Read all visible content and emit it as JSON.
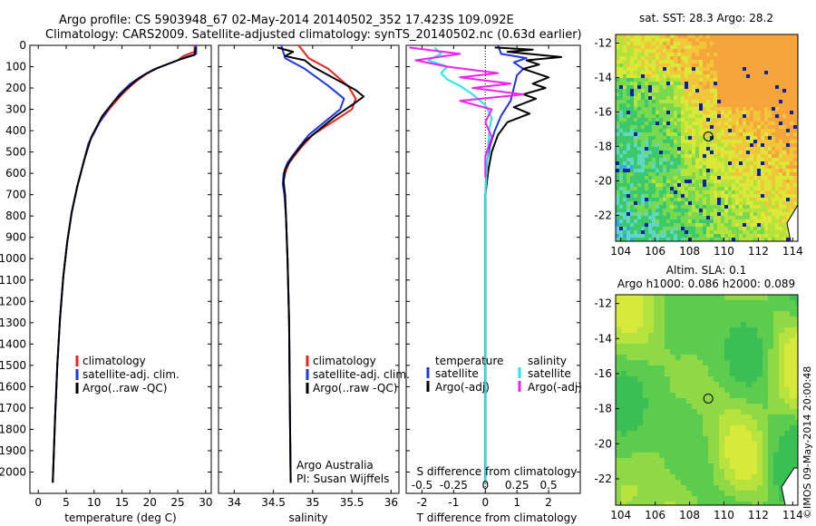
{
  "header": {
    "line1": "Argo profile: CS 5903948_67 02-May-2014 20140502_352 17.423S 109.092E",
    "line2": "Climatology: CARS2009. Satellite-adjusted climatology: synTS_20140502.nc (0.63d earlier)"
  },
  "colors": {
    "climatology": "#e8231e",
    "satellite": "#1f37e6",
    "argo": "#000000",
    "sat_salinity": "#27e6e6",
    "argo_salinity": "#ee22ee"
  },
  "chart_data": [
    {
      "type": "line",
      "id": "temperature",
      "xlabel": "temperature (deg C)",
      "ylabel": "",
      "xlim": [
        -1.5,
        31
      ],
      "ylim": [
        0,
        2100
      ],
      "xticks": [
        "0",
        "5",
        "10",
        "15",
        "20",
        "25",
        "30"
      ],
      "yticks": [
        "0",
        "100",
        "200",
        "300",
        "400",
        "500",
        "600",
        "700",
        "800",
        "900",
        "1000",
        "1100",
        "1200",
        "1300",
        "1400",
        "1500",
        "1600",
        "1700",
        "1800",
        "1900",
        "2000"
      ],
      "legend": [
        "climatology",
        "satellite-adj. clim.",
        "Argo(..raw -QC)"
      ],
      "series": [
        {
          "name": "climatology",
          "color": "#e8231e",
          "points": [
            [
              28.0,
              0
            ],
            [
              28.0,
              30
            ],
            [
              26.0,
              50
            ],
            [
              25.0,
              70
            ],
            [
              23.0,
              90
            ],
            [
              21.0,
              110
            ],
            [
              19.0,
              140
            ],
            [
              17.0,
              180
            ],
            [
              15.0,
              230
            ],
            [
              13.0,
              290
            ],
            [
              11.0,
              360
            ],
            [
              9.0,
              460
            ],
            [
              8.0,
              560
            ],
            [
              7.0,
              660
            ],
            [
              6.0,
              780
            ],
            [
              5.2,
              920
            ],
            [
              4.5,
              1080
            ],
            [
              3.9,
              1280
            ],
            [
              3.4,
              1500
            ],
            [
              3.0,
              1750
            ],
            [
              2.6,
              2050
            ]
          ]
        },
        {
          "name": "satellite-adj. clim.",
          "color": "#1f37e6",
          "points": [
            [
              28.3,
              0
            ],
            [
              28.3,
              40
            ],
            [
              26.5,
              55
            ],
            [
              24.5,
              75
            ],
            [
              22.5,
              95
            ],
            [
              20.5,
              115
            ],
            [
              18.5,
              145
            ],
            [
              16.5,
              180
            ],
            [
              14.5,
              230
            ],
            [
              12.8,
              290
            ],
            [
              11.0,
              360
            ],
            [
              9.0,
              460
            ],
            [
              8.0,
              560
            ],
            [
              7.0,
              660
            ],
            [
              6.0,
              780
            ],
            [
              5.2,
              920
            ],
            [
              4.5,
              1080
            ],
            [
              3.9,
              1280
            ],
            [
              3.4,
              1500
            ],
            [
              3.0,
              1750
            ],
            [
              2.6,
              2050
            ]
          ]
        },
        {
          "name": "Argo(..raw -QC)",
          "color": "#000000",
          "points": [
            [
              28.2,
              10
            ],
            [
              28.0,
              45
            ],
            [
              25.5,
              65
            ],
            [
              23.5,
              85
            ],
            [
              21.5,
              105
            ],
            [
              19.5,
              130
            ],
            [
              17.5,
              165
            ],
            [
              15.5,
              210
            ],
            [
              13.5,
              265
            ],
            [
              11.5,
              330
            ],
            [
              9.5,
              430
            ],
            [
              8.2,
              540
            ],
            [
              7.0,
              660
            ],
            [
              6.0,
              780
            ],
            [
              5.2,
              920
            ],
            [
              4.5,
              1080
            ],
            [
              3.9,
              1280
            ],
            [
              3.4,
              1500
            ],
            [
              3.0,
              1750
            ],
            [
              2.6,
              2050
            ]
          ]
        }
      ]
    },
    {
      "type": "line",
      "id": "salinity",
      "xlabel": "salinity",
      "ylabel": "",
      "xlim": [
        33.8,
        36.1
      ],
      "ylim": [
        0,
        2100
      ],
      "xticks": [
        "34",
        "34.5",
        "35",
        "35.5",
        "36"
      ],
      "legend": [
        "climatology",
        "satellite-adj. clim.",
        "Argo(..raw -QC)"
      ],
      "annotations": [
        "Argo Australia",
        "PI: Susan Wijffels"
      ],
      "series": [
        {
          "name": "climatology",
          "color": "#e8231e",
          "points": [
            [
              34.82,
              0
            ],
            [
              34.95,
              60
            ],
            [
              35.2,
              110
            ],
            [
              35.45,
              190
            ],
            [
              35.55,
              250
            ],
            [
              35.5,
              300
            ],
            [
              35.25,
              360
            ],
            [
              35.0,
              420
            ],
            [
              34.85,
              480
            ],
            [
              34.7,
              550
            ],
            [
              34.65,
              600
            ],
            [
              34.62,
              650
            ],
            [
              34.64,
              700
            ],
            [
              34.66,
              800
            ],
            [
              34.68,
              1000
            ],
            [
              34.7,
              1300
            ],
            [
              34.71,
              1700
            ],
            [
              34.72,
              2050
            ]
          ]
        },
        {
          "name": "satellite-adj. clim.",
          "color": "#1f37e6",
          "points": [
            [
              34.6,
              0
            ],
            [
              34.65,
              60
            ],
            [
              34.9,
              110
            ],
            [
              35.2,
              190
            ],
            [
              35.4,
              250
            ],
            [
              35.35,
              300
            ],
            [
              35.15,
              360
            ],
            [
              34.95,
              420
            ],
            [
              34.82,
              480
            ],
            [
              34.68,
              550
            ],
            [
              34.63,
              600
            ],
            [
              34.62,
              650
            ],
            [
              34.64,
              700
            ],
            [
              34.66,
              800
            ],
            [
              34.68,
              1000
            ],
            [
              34.7,
              1300
            ],
            [
              34.71,
              1700
            ],
            [
              34.72,
              2050
            ]
          ]
        },
        {
          "name": "Argo(..raw -QC)",
          "color": "#000000",
          "points": [
            [
              34.55,
              10
            ],
            [
              34.75,
              30
            ],
            [
              34.65,
              50
            ],
            [
              34.9,
              70
            ],
            [
              35.0,
              100
            ],
            [
              35.2,
              140
            ],
            [
              35.4,
              180
            ],
            [
              35.55,
              210
            ],
            [
              35.65,
              240
            ],
            [
              35.5,
              280
            ],
            [
              35.3,
              330
            ],
            [
              35.1,
              390
            ],
            [
              34.9,
              450
            ],
            [
              34.75,
              520
            ],
            [
              34.65,
              580
            ],
            [
              34.63,
              640
            ],
            [
              34.65,
              700
            ],
            [
              34.66,
              800
            ],
            [
              34.68,
              1000
            ],
            [
              34.7,
              1300
            ],
            [
              34.71,
              1700
            ],
            [
              34.72,
              2050
            ]
          ]
        }
      ]
    },
    {
      "type": "line",
      "id": "differences",
      "xlabel": "T difference from climatology",
      "xlabel2": "S difference from climatology",
      "xlim": [
        -2.5,
        3
      ],
      "ylim": [
        0,
        2100
      ],
      "xticks": [
        "-2",
        "-1",
        "0",
        "1",
        "2"
      ],
      "xticks2": [
        "-0.5",
        "-0.25",
        "0",
        "0.25",
        "0.5"
      ],
      "legend_left": [
        "temperature",
        "satellite",
        "Argo(-adj)"
      ],
      "legend_right": [
        "salinity",
        "satellite",
        "Argo(-adj)"
      ],
      "series": [
        {
          "name": "T satellite",
          "color": "#1f37e6",
          "points": [
            [
              0.4,
              0
            ],
            [
              0.5,
              40
            ],
            [
              1.3,
              60
            ],
            [
              0.9,
              80
            ],
            [
              1.2,
              110
            ],
            [
              1.0,
              140
            ],
            [
              0.9,
              200
            ],
            [
              0.8,
              260
            ],
            [
              0.5,
              330
            ],
            [
              0.3,
              400
            ],
            [
              0.15,
              470
            ],
            [
              0.05,
              550
            ],
            [
              0.0,
              700
            ],
            [
              0.0,
              2050
            ]
          ]
        },
        {
          "name": "T Argo(-adj)",
          "color": "#000000",
          "points": [
            [
              0.3,
              10
            ],
            [
              1.5,
              20
            ],
            [
              0.7,
              30
            ],
            [
              2.4,
              55
            ],
            [
              1.3,
              70
            ],
            [
              1.7,
              90
            ],
            [
              1.2,
              110
            ],
            [
              2.0,
              150
            ],
            [
              1.5,
              180
            ],
            [
              1.9,
              200
            ],
            [
              1.2,
              230
            ],
            [
              1.6,
              250
            ],
            [
              0.9,
              290
            ],
            [
              1.4,
              320
            ],
            [
              0.7,
              360
            ],
            [
              0.4,
              420
            ],
            [
              0.2,
              500
            ],
            [
              0.1,
              580
            ],
            [
              0.0,
              700
            ],
            [
              0.0,
              2050
            ]
          ]
        },
        {
          "name": "S satellite",
          "color": "#27e6e6",
          "points": [
            [
              -0.4,
              10
            ],
            [
              -0.35,
              40
            ],
            [
              -0.45,
              70
            ],
            [
              -0.3,
              100
            ],
            [
              -0.35,
              130
            ],
            [
              -0.3,
              160
            ],
            [
              -0.2,
              190
            ],
            [
              -0.1,
              230
            ],
            [
              0.0,
              280
            ],
            [
              0.05,
              340
            ],
            [
              0.03,
              400
            ],
            [
              0.02,
              500
            ],
            [
              0.0,
              700
            ],
            [
              0.0,
              2050
            ]
          ]
        },
        {
          "name": "S Argo(-adj)",
          "color": "#ee22ee",
          "points": [
            [
              -0.6,
              10
            ],
            [
              -0.2,
              40
            ],
            [
              -0.55,
              70
            ],
            [
              -0.3,
              100
            ],
            [
              0.1,
              130
            ],
            [
              -0.2,
              150
            ],
            [
              0.2,
              180
            ],
            [
              -0.1,
              200
            ],
            [
              0.3,
              230
            ],
            [
              -0.2,
              260
            ],
            [
              0.05,
              300
            ],
            [
              0.0,
              360
            ],
            [
              0.05,
              430
            ],
            [
              0.0,
              520
            ],
            [
              0.0,
              620
            ]
          ]
        }
      ]
    },
    {
      "type": "heatmap",
      "id": "sst-map",
      "title": "sat. SST: 28.3 Argo: 28.2",
      "xticks": [
        "104",
        "106",
        "108",
        "110",
        "112",
        "114"
      ],
      "yticks": [
        "-12",
        "-14",
        "-16",
        "-18",
        "-20",
        "-22"
      ],
      "xlim": [
        103.7,
        114.3
      ],
      "ylim": [
        -23.5,
        -11.5
      ],
      "marker": {
        "lon": 109.09,
        "lat": -17.42
      }
    },
    {
      "type": "heatmap",
      "id": "sla-map",
      "title": "Altim. SLA: 0.1",
      "subtitle": "Argo h1000: 0.086 h2000: 0.089",
      "xticks": [
        "104",
        "106",
        "108",
        "110",
        "112",
        "114"
      ],
      "yticks": [
        "-12",
        "-14",
        "-16",
        "-18",
        "-20",
        "-22"
      ],
      "xlim": [
        103.7,
        114.3
      ],
      "ylim": [
        -23.5,
        -11.5
      ],
      "marker": {
        "lon": 109.09,
        "lat": -17.42
      }
    }
  ],
  "footer": {
    "stamp": "©IMOS 09-May-2014 20:00:48"
  }
}
